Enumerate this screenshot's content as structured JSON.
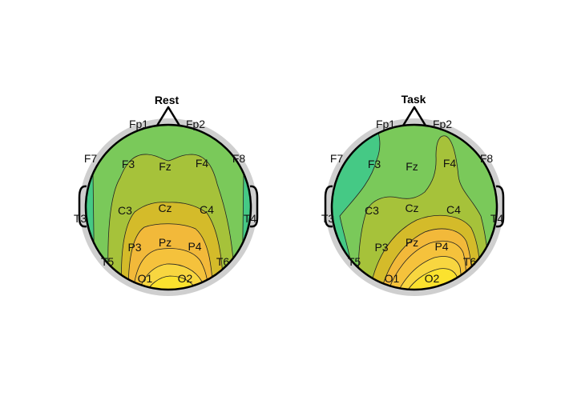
{
  "panels": [
    {
      "title": "Rest",
      "electrodes": [
        "Fp1",
        "Fp2",
        "F7",
        "F3",
        "Fz",
        "F4",
        "F8",
        "T3",
        "C3",
        "Cz",
        "C4",
        "T4",
        "T5",
        "P3",
        "Pz",
        "P4",
        "T6",
        "O1",
        "O2"
      ]
    },
    {
      "title": "Task",
      "electrodes": [
        "Fp1",
        "Fp2",
        "F7",
        "F3",
        "Fz",
        "F4",
        "F8",
        "T3",
        "C3",
        "Cz",
        "C4",
        "T4",
        "T5",
        "P3",
        "Pz",
        "P4",
        "T6",
        "O1",
        "O2"
      ]
    }
  ],
  "colors": {
    "ring": "#cfcfcf",
    "level1": "#45c985",
    "level2": "#7ac95a",
    "level3": "#a6c23a",
    "level4": "#d4bb2a",
    "level5": "#f2b93a",
    "level6": "#f8d640",
    "level7": "#fbe22e",
    "outline": "#000000"
  }
}
